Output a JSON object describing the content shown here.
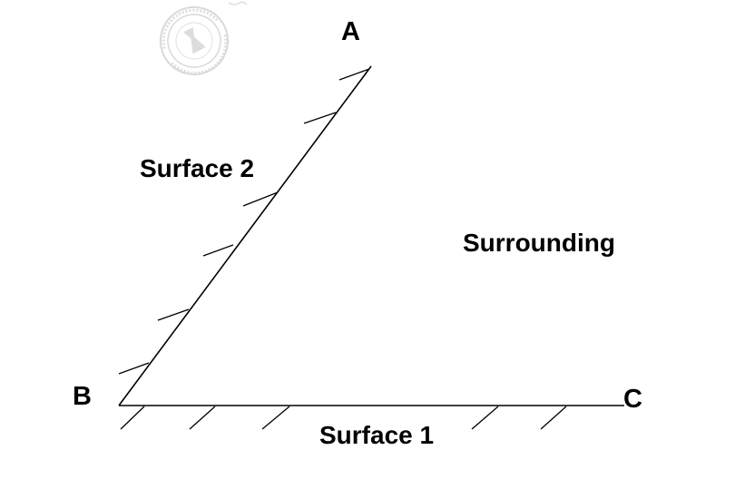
{
  "points": {
    "a": "A",
    "b": "B",
    "c": "C"
  },
  "labels": {
    "surface1": "Surface 1",
    "surface2": "Surface 2",
    "surrounding": "Surrounding"
  },
  "watermark": {
    "present": true,
    "kind": "circular seal"
  },
  "colors": {
    "line": "#000000",
    "text": "#000000",
    "background": "#ffffff"
  }
}
